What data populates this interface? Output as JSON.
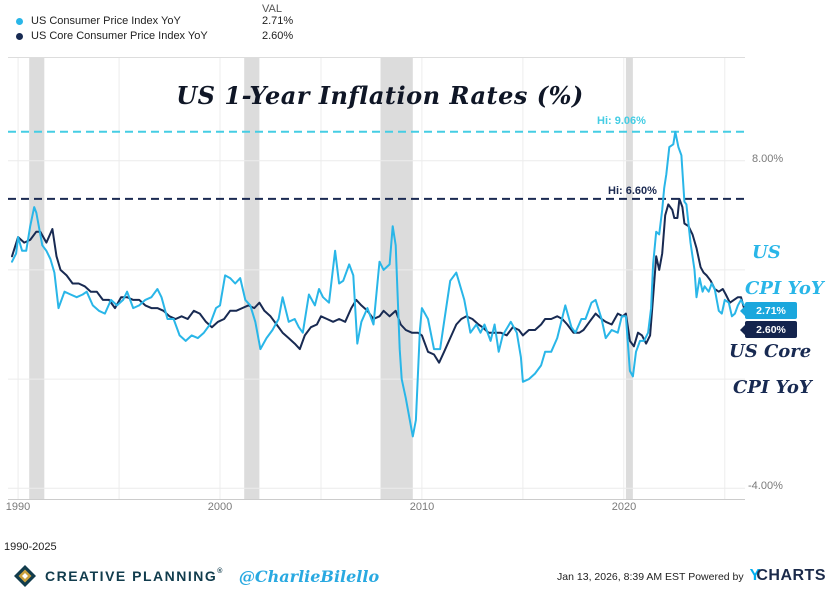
{
  "legend": {
    "val_header": "VAL",
    "items": [
      {
        "label": "US Consumer Price Index YoY",
        "value": "2.71%",
        "color": "#29b6e8"
      },
      {
        "label": "US Core Consumer Price Index YoY",
        "value": "2.60%",
        "color": "#182a52"
      }
    ]
  },
  "chart_data": {
    "type": "line",
    "title": "US 1-Year Inflation Rates (%)",
    "period_label": "1990-2025",
    "xlim": [
      1989.5,
      2026.0
    ],
    "ylim": [
      -4.43,
      11.8
    ],
    "x_ticks": [
      "1990",
      "2000",
      "2010",
      "2020"
    ],
    "grid_years": [
      1990,
      1995,
      2000,
      2005,
      2010,
      2015,
      2020,
      2025
    ],
    "grid_values": [
      8,
      4,
      0,
      -4
    ],
    "y_tick_labels": [
      {
        "value": 8,
        "label": "8.00%"
      },
      {
        "value": -4,
        "label": "-4.00%"
      }
    ],
    "recessions": [
      [
        1990.55,
        1991.3
      ],
      [
        2001.2,
        2001.95
      ],
      [
        2007.95,
        2009.55
      ],
      [
        2020.1,
        2020.45
      ]
    ],
    "hi_lines": [
      {
        "label": "Hi: 9.06%",
        "value": 9.06,
        "color": "#45cde4"
      },
      {
        "label": "Hi: 6.60%",
        "value": 6.6,
        "color": "#1b2a52"
      }
    ],
    "end_badges": [
      {
        "label": "2.71%",
        "value": 2.71,
        "color": "#1ba7dd"
      },
      {
        "label": "2.60%",
        "value": 2.6,
        "color": "#14244d"
      }
    ],
    "annotations": [
      {
        "lines": [
          "US",
          "CPI YoY"
        ],
        "color": "#29b6e8"
      },
      {
        "lines": [
          "US Core",
          "CPI YoY"
        ],
        "color": "#182a52"
      }
    ],
    "series": [
      {
        "name": "US Consumer Price Index YoY",
        "color": "#29b6e8",
        "x": [
          1989.7,
          1989.9,
          1990.0,
          1990.2,
          1990.4,
          1990.6,
          1990.8,
          1990.9,
          1991.0,
          1991.2,
          1991.4,
          1991.6,
          1991.8,
          1992.0,
          1992.3,
          1992.6,
          1992.9,
          1993.2,
          1993.4,
          1993.7,
          1994.0,
          1994.3,
          1994.6,
          1994.9,
          1995.2,
          1995.4,
          1995.7,
          1996.0,
          1996.3,
          1996.6,
          1996.9,
          1997.1,
          1997.4,
          1997.7,
          1998.0,
          1998.3,
          1998.6,
          1998.9,
          1999.2,
          1999.5,
          1999.8,
          2000.0,
          2000.25,
          2000.5,
          2000.75,
          2001.0,
          2001.25,
          2001.5,
          2001.75,
          2002.0,
          2002.3,
          2002.6,
          2002.9,
          2003.1,
          2003.4,
          2003.7,
          2003.9,
          2004.1,
          2004.4,
          2004.7,
          2004.9,
          2005.1,
          2005.4,
          2005.7,
          2005.9,
          2006.1,
          2006.4,
          2006.6,
          2006.8,
          2007.0,
          2007.3,
          2007.6,
          2007.9,
          2008.1,
          2008.4,
          2008.55,
          2008.7,
          2008.9,
          2009.0,
          2009.2,
          2009.55,
          2009.7,
          2009.9,
          2010.0,
          2010.3,
          2010.6,
          2010.9,
          2011.1,
          2011.4,
          2011.7,
          2011.9,
          2012.1,
          2012.4,
          2012.7,
          2012.9,
          2013.1,
          2013.4,
          2013.6,
          2013.8,
          2014.0,
          2014.4,
          2014.7,
          2014.9,
          2015.0,
          2015.3,
          2015.6,
          2015.9,
          2016.1,
          2016.4,
          2016.7,
          2016.9,
          2017.1,
          2017.4,
          2017.6,
          2017.9,
          2018.1,
          2018.4,
          2018.6,
          2018.9,
          2019.1,
          2019.4,
          2019.7,
          2019.9,
          2020.1,
          2020.3,
          2020.45,
          2020.6,
          2020.8,
          2021.0,
          2021.2,
          2021.35,
          2021.45,
          2021.6,
          2021.75,
          2021.9,
          2022.0,
          2022.1,
          2022.25,
          2022.45,
          2022.55,
          2022.7,
          2022.85,
          2023.0,
          2023.1,
          2023.3,
          2023.5,
          2023.6,
          2023.75,
          2023.9,
          2024.0,
          2024.2,
          2024.35,
          2024.5,
          2024.7,
          2024.85,
          2025.0,
          2025.2,
          2025.35,
          2025.5,
          2025.65,
          2025.8,
          2025.95
        ],
        "values": [
          4.3,
          4.6,
          5.2,
          4.7,
          4.7,
          5.6,
          6.3,
          6.1,
          5.7,
          4.9,
          4.7,
          4.4,
          3.9,
          2.6,
          3.2,
          3.1,
          3.0,
          3.1,
          3.2,
          2.7,
          2.5,
          2.4,
          2.9,
          2.7,
          2.9,
          3.2,
          2.6,
          2.7,
          2.9,
          3.0,
          3.3,
          3.0,
          2.2,
          2.2,
          1.6,
          1.4,
          1.6,
          1.5,
          1.7,
          2.0,
          2.6,
          2.7,
          3.8,
          3.7,
          3.5,
          3.7,
          2.9,
          2.7,
          2.1,
          1.1,
          1.5,
          1.8,
          2.2,
          3.0,
          2.1,
          2.2,
          1.9,
          1.7,
          3.1,
          2.7,
          3.3,
          3.0,
          2.8,
          4.7,
          3.5,
          3.6,
          4.2,
          3.8,
          1.3,
          2.1,
          2.6,
          2.0,
          4.3,
          4.0,
          4.2,
          5.6,
          4.9,
          1.1,
          0.0,
          -0.7,
          -2.1,
          -1.5,
          1.8,
          2.6,
          2.2,
          1.1,
          1.1,
          2.1,
          3.6,
          3.9,
          3.4,
          2.9,
          1.7,
          2.0,
          1.7,
          2.0,
          1.4,
          2.0,
          1.0,
          1.6,
          2.1,
          1.7,
          0.8,
          -0.1,
          0.0,
          0.2,
          0.5,
          1.0,
          1.0,
          1.5,
          2.1,
          2.7,
          1.9,
          1.7,
          2.2,
          2.2,
          2.8,
          2.9,
          2.2,
          1.5,
          1.8,
          1.7,
          2.3,
          2.3,
          0.3,
          0.1,
          1.0,
          1.4,
          1.4,
          1.7,
          2.6,
          4.2,
          5.4,
          5.3,
          6.2,
          7.0,
          7.5,
          8.5,
          8.6,
          9.06,
          8.5,
          8.2,
          6.5,
          6.4,
          5.0,
          4.0,
          3.0,
          3.7,
          3.2,
          3.4,
          3.2,
          3.5,
          3.3,
          2.5,
          2.4,
          2.9,
          2.8,
          2.3,
          2.4,
          2.7,
          2.9,
          2.71
        ]
      },
      {
        "name": "US Core Consumer Price Index YoY",
        "color": "#182a52",
        "x": [
          1989.7,
          1990.0,
          1990.3,
          1990.6,
          1990.9,
          1991.1,
          1991.4,
          1991.7,
          1991.9,
          1992.1,
          1992.4,
          1992.7,
          1993.0,
          1993.3,
          1993.6,
          1993.9,
          1994.2,
          1994.5,
          1994.8,
          1995.1,
          1995.4,
          1995.7,
          1996.0,
          1996.3,
          1996.6,
          1996.9,
          1997.2,
          1997.5,
          1997.8,
          1998.1,
          1998.4,
          1998.7,
          1999.0,
          1999.3,
          1999.6,
          1999.9,
          2000.2,
          2000.5,
          2000.8,
          2001.1,
          2001.4,
          2001.7,
          2001.95,
          2002.2,
          2002.5,
          2002.8,
          2003.1,
          2003.4,
          2003.7,
          2003.95,
          2004.2,
          2004.5,
          2004.8,
          2005.0,
          2005.3,
          2005.6,
          2005.9,
          2006.2,
          2006.5,
          2006.75,
          2007.0,
          2007.3,
          2007.6,
          2007.9,
          2008.1,
          2008.4,
          2008.7,
          2008.95,
          2009.2,
          2009.5,
          2009.8,
          2010.0,
          2010.3,
          2010.6,
          2010.85,
          2011.1,
          2011.4,
          2011.7,
          2011.95,
          2012.2,
          2012.5,
          2012.8,
          2013.0,
          2013.3,
          2013.6,
          2013.9,
          2014.2,
          2014.5,
          2014.8,
          2015.0,
          2015.3,
          2015.6,
          2015.9,
          2016.1,
          2016.4,
          2016.7,
          2016.95,
          2017.2,
          2017.5,
          2017.8,
          2018.0,
          2018.3,
          2018.6,
          2018.9,
          2019.1,
          2019.4,
          2019.7,
          2019.95,
          2020.1,
          2020.3,
          2020.5,
          2020.7,
          2020.9,
          2021.1,
          2021.3,
          2021.45,
          2021.6,
          2021.75,
          2021.9,
          2022.05,
          2022.2,
          2022.4,
          2022.5,
          2022.65,
          2022.75,
          2022.9,
          2023.0,
          2023.2,
          2023.4,
          2023.6,
          2023.8,
          2023.95,
          2024.1,
          2024.3,
          2024.5,
          2024.7,
          2024.9,
          2025.05,
          2025.25,
          2025.45,
          2025.65,
          2025.8,
          2025.95
        ],
        "values": [
          4.5,
          5.2,
          5.0,
          5.1,
          5.4,
          5.4,
          5.0,
          5.5,
          4.5,
          4.0,
          3.8,
          3.5,
          3.5,
          3.4,
          3.2,
          3.2,
          2.9,
          2.9,
          2.6,
          3.0,
          3.0,
          2.9,
          2.9,
          2.7,
          2.6,
          2.6,
          2.5,
          2.3,
          2.2,
          2.3,
          2.2,
          2.5,
          2.4,
          2.1,
          1.9,
          2.1,
          2.2,
          2.5,
          2.5,
          2.6,
          2.7,
          2.6,
          2.8,
          2.5,
          2.3,
          2.0,
          1.7,
          1.5,
          1.3,
          1.1,
          1.6,
          1.9,
          2.0,
          2.3,
          2.2,
          2.1,
          2.2,
          2.1,
          2.6,
          2.9,
          2.7,
          2.5,
          2.2,
          2.3,
          2.5,
          2.3,
          2.5,
          2.0,
          1.8,
          1.7,
          1.7,
          1.6,
          1.0,
          0.9,
          0.6,
          1.0,
          1.5,
          2.0,
          2.2,
          2.3,
          2.2,
          2.0,
          1.9,
          1.7,
          1.7,
          1.7,
          1.6,
          1.9,
          1.8,
          1.6,
          1.8,
          1.8,
          2.0,
          2.2,
          2.2,
          2.3,
          2.2,
          2.0,
          1.7,
          1.7,
          1.8,
          2.1,
          2.4,
          2.2,
          2.1,
          2.0,
          2.4,
          2.3,
          2.4,
          1.4,
          1.2,
          1.7,
          1.6,
          1.3,
          1.6,
          3.0,
          4.5,
          4.0,
          4.6,
          6.0,
          6.4,
          6.2,
          5.9,
          5.9,
          6.6,
          6.3,
          5.7,
          5.6,
          5.3,
          4.8,
          4.1,
          3.9,
          3.8,
          3.6,
          3.3,
          3.2,
          3.3,
          3.1,
          2.8,
          2.9,
          3.0,
          3.0,
          2.6
        ]
      }
    ]
  },
  "footer": {
    "brand": "CREATIVE PLANNING",
    "brand_reg": "®",
    "handle": "@CharlieBilello",
    "timestamp": "Jan 13, 2026, 8:39 AM EST",
    "powered_by": "Powered by",
    "ycharts_y": "Y",
    "ycharts_rest": "CHARTS"
  }
}
